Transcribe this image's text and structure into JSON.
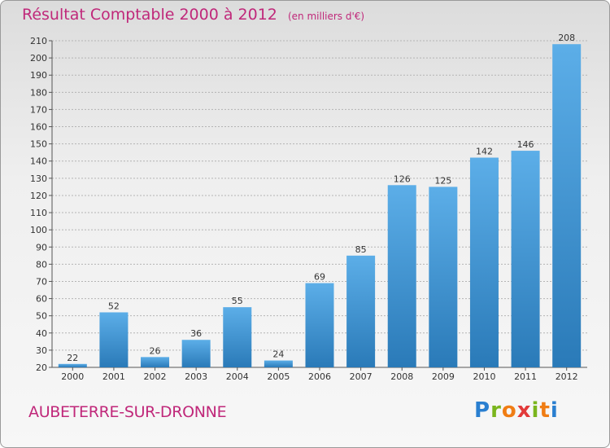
{
  "title": {
    "main": "Résultat Comptable 2000 à 2012",
    "unit": "(en milliers d'€)"
  },
  "commune": "AUBETERRE-SUR-DRONNE",
  "logo": {
    "letters": [
      "P",
      "r",
      "o",
      "x",
      "i",
      "t",
      "i"
    ],
    "text": "Proxiti"
  },
  "colors": {
    "title": "#c0287a",
    "bar_top": "#5caee8",
    "bar_bottom": "#2a7ab8",
    "grid": "#b4b4b4"
  },
  "chart_data": {
    "type": "bar",
    "categories": [
      "2000",
      "2001",
      "2002",
      "2003",
      "2004",
      "2005",
      "2006",
      "2007",
      "2008",
      "2009",
      "2010",
      "2011",
      "2012"
    ],
    "values": [
      22,
      52,
      26,
      36,
      55,
      24,
      69,
      85,
      126,
      125,
      142,
      146,
      208
    ],
    "ylim": [
      20,
      210
    ],
    "yticks": [
      20,
      30,
      40,
      50,
      60,
      70,
      80,
      90,
      100,
      110,
      120,
      130,
      140,
      150,
      160,
      170,
      180,
      190,
      200,
      210
    ],
    "grid": true,
    "data_labels": true
  }
}
